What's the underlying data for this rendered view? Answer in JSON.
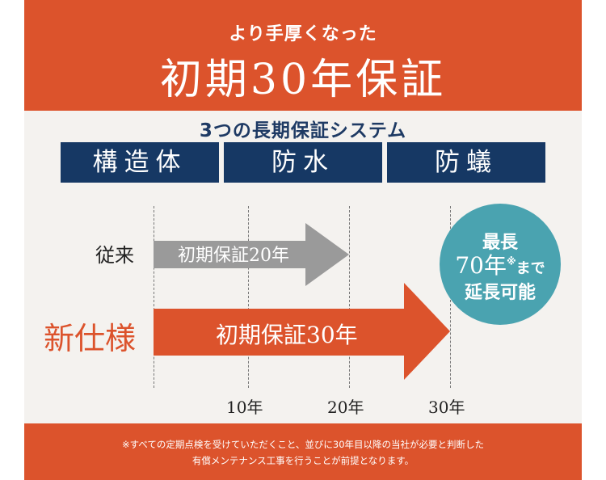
{
  "header": {
    "subtitle": "より手厚くなった",
    "title": "初期30年保証"
  },
  "systems": {
    "title": "3つの長期保証システム",
    "items": [
      "構造体",
      "防水",
      "防蟻"
    ]
  },
  "rows": {
    "old_label": "従来",
    "new_label": "新仕様",
    "old_arrow": "初期保証20年",
    "new_arrow": "初期保証30年"
  },
  "badge": {
    "line1": "最長",
    "line2_main": "70年",
    "line2_mark": "※",
    "line2_suffix": "まで",
    "line3": "延長可能"
  },
  "ticks": [
    "10年",
    "20年",
    "30年"
  ],
  "colors": {
    "accent": "#dc532c",
    "navy": "#163864",
    "teal": "#4aa3b0",
    "gray_arrow": "#9a9a9a"
  },
  "footer": {
    "note_line1": "※すべての定期点検を受けていただくこと、並びに30年目以降の当社が必要と判断した",
    "note_line2": "有償メンテナンス工事を行うことが前提となります。"
  }
}
